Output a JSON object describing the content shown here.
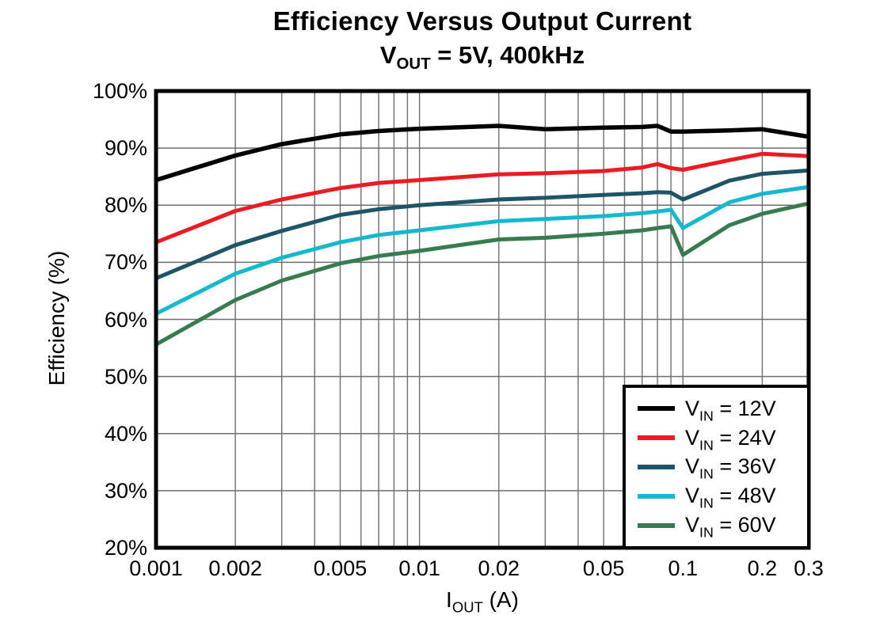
{
  "title": "Efficiency Versus Output Current",
  "subtitle": {
    "prefix": "V",
    "sub": "OUT",
    "rest": " = 5V, 400kHz"
  },
  "axes": {
    "y_label": "Efficiency (%)",
    "x_label": {
      "prefix": "I",
      "sub": "OUT",
      "rest": " (A)"
    }
  },
  "colors": {
    "frame": "#000000",
    "grid": "#6e6e6e",
    "background": "#ffffff"
  },
  "chart_data": {
    "type": "line",
    "title": "Efficiency Versus Output Current",
    "subtitle": "VOUT = 5V, 400kHz",
    "xlabel": "IOUT (A)",
    "ylabel": "Efficiency (%)",
    "x_scale": "log",
    "xlim": [
      0.001,
      0.3
    ],
    "ylim": [
      20,
      100
    ],
    "grid": true,
    "legend_position": "lower right",
    "y_ticks": [
      {
        "value": 100,
        "label": "100%"
      },
      {
        "value": 90,
        "label": "90%"
      },
      {
        "value": 80,
        "label": "80%"
      },
      {
        "value": 70,
        "label": "70%"
      },
      {
        "value": 60,
        "label": "60%"
      },
      {
        "value": 50,
        "label": "50%"
      },
      {
        "value": 40,
        "label": "40%"
      },
      {
        "value": 30,
        "label": "30%"
      },
      {
        "value": 20,
        "label": "20%"
      }
    ],
    "x_ticks": [
      {
        "value": 0.001,
        "label": "0.001"
      },
      {
        "value": 0.002,
        "label": "0.002"
      },
      {
        "value": 0.005,
        "label": "0.005"
      },
      {
        "value": 0.01,
        "label": "0.01"
      },
      {
        "value": 0.02,
        "label": "0.02"
      },
      {
        "value": 0.05,
        "label": "0.05"
      },
      {
        "value": 0.1,
        "label": "0.1"
      },
      {
        "value": 0.2,
        "label": "0.2"
      },
      {
        "value": 0.3,
        "label": "0.3"
      }
    ],
    "x_gridlines": [
      0.002,
      0.003,
      0.004,
      0.005,
      0.006,
      0.007,
      0.008,
      0.009,
      0.01,
      0.02,
      0.03,
      0.04,
      0.05,
      0.06,
      0.07,
      0.08,
      0.09,
      0.1,
      0.2
    ],
    "y_gridlines": [
      30,
      40,
      50,
      60,
      70,
      80,
      90
    ],
    "x": [
      0.001,
      0.002,
      0.003,
      0.005,
      0.007,
      0.01,
      0.02,
      0.03,
      0.05,
      0.07,
      0.08,
      0.09,
      0.1,
      0.15,
      0.2,
      0.3
    ],
    "series": [
      {
        "key": "vin-12v",
        "name": "VIN = 12V",
        "label_prefix": "V",
        "label_sub": "IN",
        "label_rest": " = 12V",
        "color": "#000000",
        "values": [
          84.4,
          88.7,
          90.7,
          92.4,
          93.0,
          93.4,
          93.9,
          93.3,
          93.6,
          93.7,
          93.9,
          92.9,
          92.9,
          93.1,
          93.3,
          92.0
        ]
      },
      {
        "key": "vin-24v",
        "name": "VIN = 24V",
        "label_prefix": "V",
        "label_sub": "IN",
        "label_rest": " = 24V",
        "color": "#ec1b23",
        "values": [
          73.5,
          79.0,
          81.0,
          83.0,
          83.9,
          84.4,
          85.4,
          85.6,
          86.0,
          86.6,
          87.2,
          86.5,
          86.2,
          87.9,
          89.0,
          88.6
        ]
      },
      {
        "key": "vin-36v",
        "name": "VIN = 36V",
        "label_prefix": "V",
        "label_sub": "IN",
        "label_rest": " = 36V",
        "color": "#1d5468",
        "values": [
          67.2,
          73.0,
          75.5,
          78.3,
          79.3,
          80.0,
          81.0,
          81.3,
          81.8,
          82.1,
          82.3,
          82.2,
          81.0,
          84.3,
          85.5,
          86.1
        ]
      },
      {
        "key": "vin-48v",
        "name": "VIN = 48V",
        "label_prefix": "V",
        "label_sub": "IN",
        "label_rest": " = 48V",
        "color": "#14b9cd",
        "values": [
          61.0,
          68.0,
          70.8,
          73.5,
          74.8,
          75.6,
          77.2,
          77.6,
          78.1,
          78.6,
          78.9,
          79.2,
          76.0,
          80.5,
          82.0,
          83.2
        ]
      },
      {
        "key": "vin-60v",
        "name": "VIN = 60V",
        "label_prefix": "V",
        "label_sub": "IN",
        "label_rest": " = 60V",
        "color": "#377b4e",
        "values": [
          55.6,
          63.4,
          66.8,
          69.8,
          71.1,
          72.0,
          74.0,
          74.3,
          75.0,
          75.6,
          76.0,
          76.3,
          71.3,
          76.5,
          78.5,
          80.3
        ]
      }
    ]
  }
}
